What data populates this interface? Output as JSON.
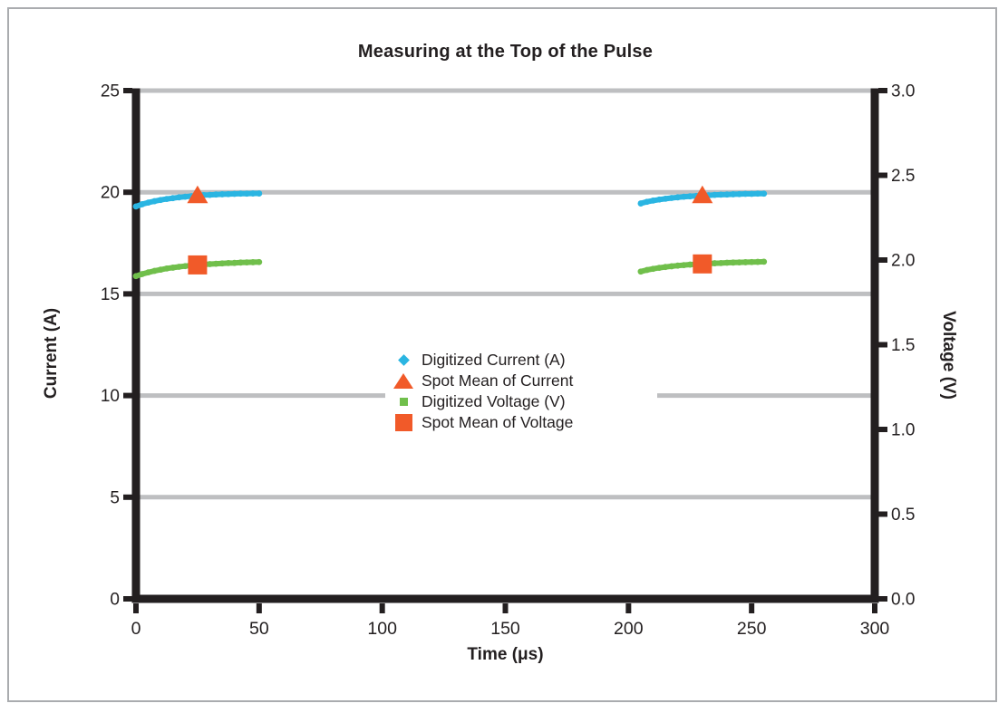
{
  "frame": {
    "border_color": "#aaacaf",
    "background": "#ffffff"
  },
  "chart_data": {
    "type": "scatter",
    "title": "Measuring at the Top of the Pulse",
    "xlabel": "Time (μs)",
    "ylabel_left": "Current (A)",
    "ylabel_right": "Voltage (V)",
    "xlim": [
      0,
      300
    ],
    "xticks": [
      0,
      50,
      100,
      150,
      200,
      250,
      300
    ],
    "ylim_left": [
      0,
      25
    ],
    "yticks_left": [
      0,
      5,
      10,
      15,
      20,
      25
    ],
    "ylim_right": [
      0,
      3
    ],
    "yticks_right": [
      "0.0",
      "0.5",
      "1.0",
      "1.5",
      "2.0",
      "2.5",
      "3.0"
    ],
    "gridlines_left": [
      5,
      10,
      15,
      20,
      25
    ],
    "grid_on": true,
    "grid_color": "#BEBFC1",
    "axis_color": "#231F20",
    "legend_position": "center",
    "series": [
      {
        "name": "Digitized Current (A)",
        "axis": "left",
        "color": "#2AB5E2",
        "marker": "diamond",
        "style": "digitized",
        "segments": [
          [
            [
              0,
              19.3
            ],
            [
              2.5,
              19.41
            ],
            [
              5,
              19.49
            ],
            [
              7.5,
              19.56
            ],
            [
              10,
              19.62
            ],
            [
              12.5,
              19.67
            ],
            [
              15,
              19.71
            ],
            [
              17.5,
              19.75
            ],
            [
              20,
              19.78
            ],
            [
              22.5,
              19.81
            ],
            [
              25,
              19.84
            ],
            [
              27.5,
              19.86
            ],
            [
              30,
              19.87
            ],
            [
              32.5,
              19.89
            ],
            [
              35,
              19.9
            ],
            [
              37.5,
              19.91
            ],
            [
              40,
              19.92
            ],
            [
              42.5,
              19.93
            ],
            [
              45,
              19.93
            ],
            [
              47.5,
              19.94
            ],
            [
              50,
              19.94
            ]
          ],
          [
            [
              205,
              19.45
            ],
            [
              207.5,
              19.53
            ],
            [
              210,
              19.59
            ],
            [
              212.5,
              19.64
            ],
            [
              215,
              19.68
            ],
            [
              217.5,
              19.72
            ],
            [
              220,
              19.75
            ],
            [
              222.5,
              19.78
            ],
            [
              225,
              19.8
            ],
            [
              227.5,
              19.82
            ],
            [
              230,
              19.84
            ],
            [
              232.5,
              19.85
            ],
            [
              235,
              19.87
            ],
            [
              237.5,
              19.88
            ],
            [
              240,
              19.89
            ],
            [
              242.5,
              19.9
            ],
            [
              245,
              19.91
            ],
            [
              247.5,
              19.92
            ],
            [
              250,
              19.92
            ],
            [
              252.5,
              19.93
            ],
            [
              255,
              19.93
            ]
          ]
        ]
      },
      {
        "name": "Spot Mean of Current",
        "axis": "left",
        "color": "#F15A29",
        "marker": "triangle",
        "style": "spot",
        "segments": [
          [
            [
              25,
              19.84
            ]
          ],
          [
            [
              230,
              19.84
            ]
          ]
        ]
      },
      {
        "name": "Digitized Voltage (V)",
        "axis": "right",
        "color": "#70BF4B",
        "marker": "square",
        "style": "digitized",
        "segments": [
          [
            [
              0,
              1.905
            ],
            [
              2.5,
              1.917
            ],
            [
              5,
              1.927
            ],
            [
              7.5,
              1.936
            ],
            [
              10,
              1.943
            ],
            [
              12.5,
              1.95
            ],
            [
              15,
              1.955
            ],
            [
              17.5,
              1.96
            ],
            [
              20,
              1.964
            ],
            [
              22.5,
              1.968
            ],
            [
              25,
              1.971
            ],
            [
              27.5,
              1.974
            ],
            [
              30,
              1.976
            ],
            [
              32.5,
              1.978
            ],
            [
              35,
              1.98
            ],
            [
              37.5,
              1.982
            ],
            [
              40,
              1.983
            ],
            [
              42.5,
              1.985
            ],
            [
              45,
              1.986
            ],
            [
              47.5,
              1.987
            ],
            [
              50,
              1.988
            ]
          ],
          [
            [
              205,
              1.932
            ],
            [
              207.5,
              1.941
            ],
            [
              210,
              1.948
            ],
            [
              212.5,
              1.954
            ],
            [
              215,
              1.959
            ],
            [
              217.5,
              1.963
            ],
            [
              220,
              1.967
            ],
            [
              222.5,
              1.97
            ],
            [
              225,
              1.973
            ],
            [
              227.5,
              1.975
            ],
            [
              230,
              1.977
            ],
            [
              232.5,
              1.979
            ],
            [
              235,
              1.981
            ],
            [
              237.5,
              1.982
            ],
            [
              240,
              1.984
            ],
            [
              242.5,
              1.985
            ],
            [
              245,
              1.986
            ],
            [
              247.5,
              1.987
            ],
            [
              250,
              1.988
            ],
            [
              252.5,
              1.989
            ],
            [
              255,
              1.99
            ]
          ]
        ]
      },
      {
        "name": "Spot Mean of Voltage",
        "axis": "right",
        "color": "#F15A29",
        "marker": "big-square",
        "style": "spot",
        "segments": [
          [
            [
              25,
              1.971
            ]
          ],
          [
            [
              230,
              1.977
            ]
          ]
        ]
      }
    ]
  }
}
